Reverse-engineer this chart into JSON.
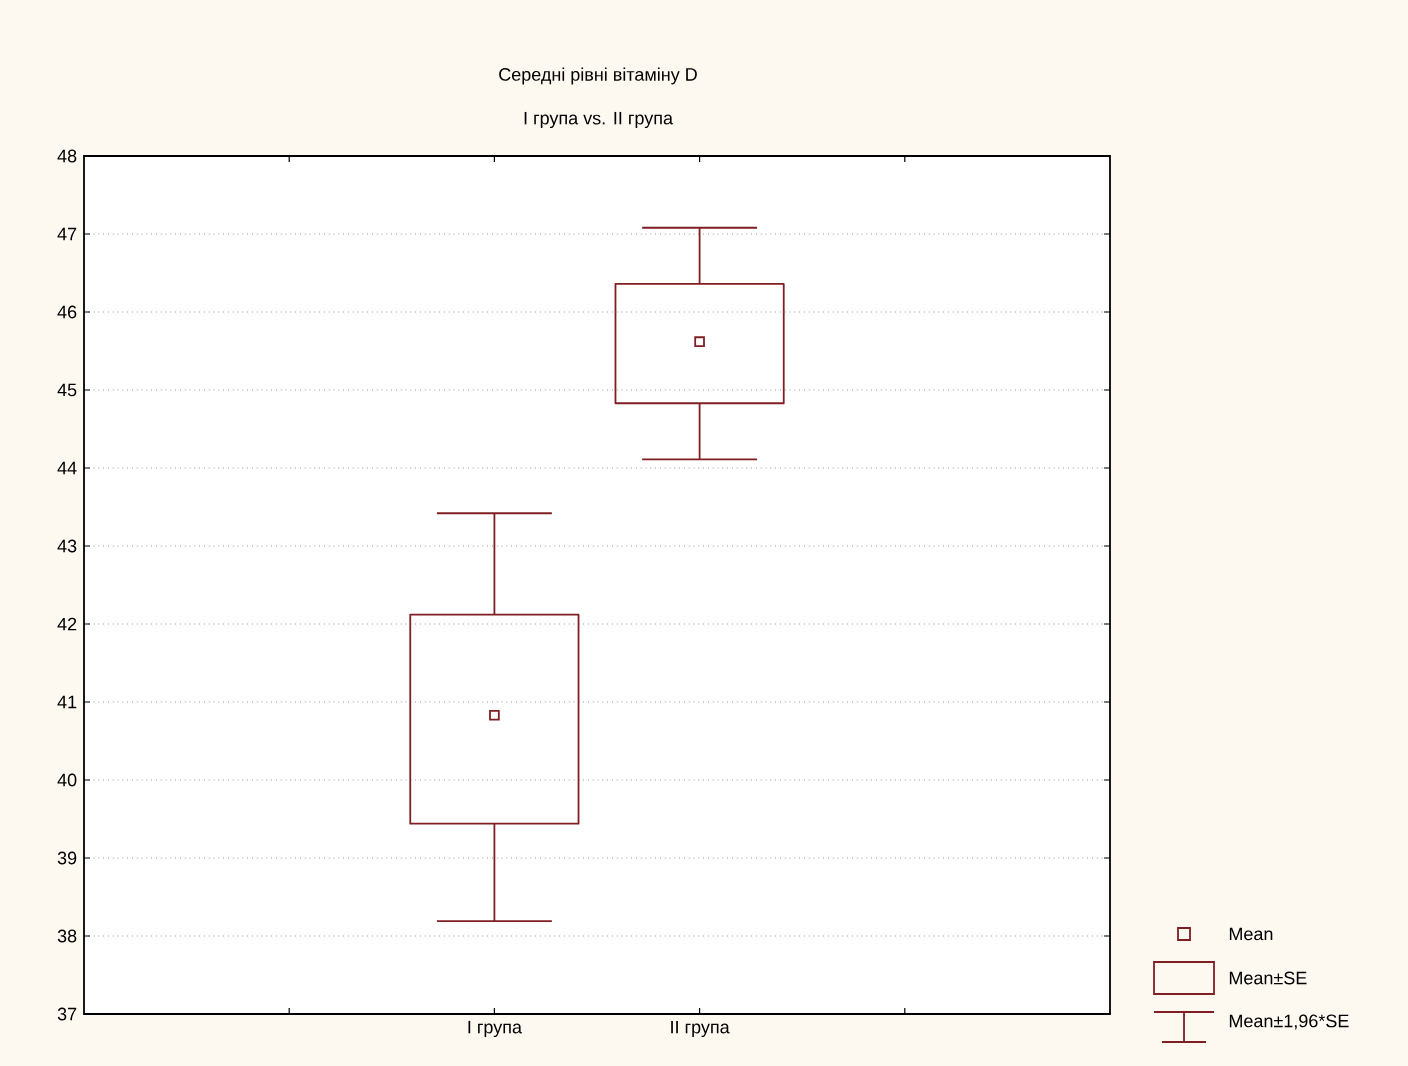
{
  "chart_data": {
    "type": "box",
    "title": "Середні рівні вітаміну D",
    "subtitle": "I група vs. II група",
    "categories": [
      null,
      "I група",
      "II група",
      null
    ],
    "boxes": [
      null,
      {
        "low": 38.19,
        "q1": 39.44,
        "mean": 40.83,
        "q3": 42.12,
        "high": 43.42
      },
      {
        "low": 44.11,
        "q1": 44.83,
        "mean": 45.62,
        "q3": 46.36,
        "high": 47.08
      },
      null
    ],
    "color": "#7f1f23",
    "ylim": [
      37,
      48
    ],
    "yticks": [
      37,
      38,
      39,
      40,
      41,
      42,
      43,
      44,
      45,
      46,
      47,
      48
    ],
    "grid": "y",
    "marker": "square",
    "annotations": [
      "Mean",
      "Mean±SE",
      "Mean±1,96*SE"
    ]
  }
}
